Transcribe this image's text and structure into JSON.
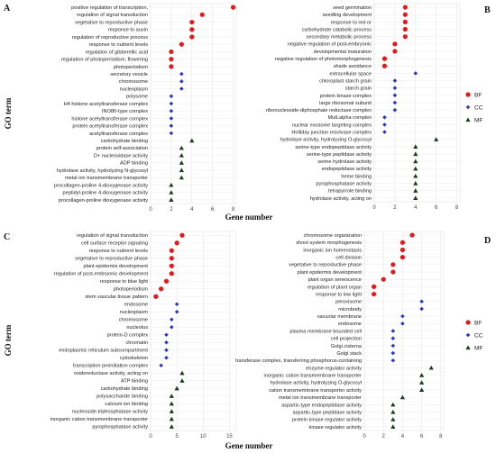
{
  "figure": {
    "ylabel": "GO term",
    "xlabel": "Gene number",
    "colors": {
      "BF": "#e31a1c",
      "CC": "#2b35c8",
      "MF": "#1a3d1a"
    },
    "legend": [
      "BF",
      "CC",
      "MF"
    ]
  },
  "chart_data": [
    {
      "type": "scatter",
      "panel": "A",
      "xlim": [
        0,
        8.3
      ],
      "xticks": [
        0,
        2,
        4,
        6,
        8
      ],
      "legend_position": "none",
      "terms": [
        {
          "label": "positive regulation of transcription,",
          "value": 8,
          "cat": "BF"
        },
        {
          "label": "regulation of signal transduction",
          "value": 5,
          "cat": "BF"
        },
        {
          "label": "vegetative to reproductive phase",
          "value": 4,
          "cat": "BF"
        },
        {
          "label": "response to auxin",
          "value": 4,
          "cat": "BF"
        },
        {
          "label": "regulation of reproductive process",
          "value": 4,
          "cat": "BF"
        },
        {
          "label": "response to nutrient levels",
          "value": 3,
          "cat": "BF"
        },
        {
          "label": "regulation of gibberellic acid",
          "value": 2,
          "cat": "BF"
        },
        {
          "label": "regulation of photoperiodism, flowering",
          "value": 2,
          "cat": "BF"
        },
        {
          "label": "photoperiodism",
          "value": 2,
          "cat": "BF"
        },
        {
          "label": "secretory vesicle",
          "value": 3,
          "cat": "CC"
        },
        {
          "label": "chromosome",
          "value": 3,
          "cat": "CC"
        },
        {
          "label": "nucleoplasm",
          "value": 3,
          "cat": "CC"
        },
        {
          "label": "polysome",
          "value": 2,
          "cat": "CC"
        },
        {
          "label": "H4 histone acetyltransferase complex",
          "value": 2,
          "cat": "CC"
        },
        {
          "label": "INO80-type complex",
          "value": 2,
          "cat": "CC"
        },
        {
          "label": "histone acetyltransferase complex",
          "value": 2,
          "cat": "CC"
        },
        {
          "label": "protein acetyltransferase complex",
          "value": 2,
          "cat": "CC"
        },
        {
          "label": "acetyltransferase complex",
          "value": 2,
          "cat": "CC"
        },
        {
          "label": "carbohydrate binding",
          "value": 4,
          "cat": "MF"
        },
        {
          "label": "protein self-association",
          "value": 3,
          "cat": "MF"
        },
        {
          "label": "D+ nucleosidase activity",
          "value": 3,
          "cat": "MF"
        },
        {
          "label": "ADP binding",
          "value": 3,
          "cat": "MF"
        },
        {
          "label": "hydrolase activity, hydrolyzing N-glycosyl",
          "value": 3,
          "cat": "MF"
        },
        {
          "label": "metal ion transmembrane transporter",
          "value": 3,
          "cat": "MF"
        },
        {
          "label": "procollagen-proline 4-dioxygenase activity",
          "value": 2,
          "cat": "MF"
        },
        {
          "label": "peptidyl-proline 4-dioxygenase activity",
          "value": 2,
          "cat": "MF"
        },
        {
          "label": "procollagen-proline dioxygenase activity",
          "value": 2,
          "cat": "MF"
        }
      ]
    },
    {
      "type": "scatter",
      "panel": "B",
      "xlim": [
        0,
        8.3
      ],
      "xticks": [
        0,
        2,
        4,
        6,
        8
      ],
      "legend_position": "right",
      "terms": [
        {
          "label": "seed germination",
          "value": 3,
          "cat": "BF"
        },
        {
          "label": "seedling development",
          "value": 3,
          "cat": "BF"
        },
        {
          "label": "response to red or",
          "value": 3,
          "cat": "BF"
        },
        {
          "label": "carbohydrate catabolic process",
          "value": 3,
          "cat": "BF"
        },
        {
          "label": "secondary metabolic process",
          "value": 3,
          "cat": "BF"
        },
        {
          "label": "negative regulation of post-embryonic",
          "value": 2,
          "cat": "BF"
        },
        {
          "label": "developmental maturation",
          "value": 2,
          "cat": "BF"
        },
        {
          "label": "negative regulation of photomorphogenesis",
          "value": 1,
          "cat": "BF"
        },
        {
          "label": "shade avoidance",
          "value": 1,
          "cat": "BF"
        },
        {
          "label": "extracellular space",
          "value": 4,
          "cat": "CC"
        },
        {
          "label": "chloroplast starch grain",
          "value": 2,
          "cat": "CC"
        },
        {
          "label": "starch grain",
          "value": 2,
          "cat": "CC"
        },
        {
          "label": "protein kinase complex",
          "value": 2,
          "cat": "CC"
        },
        {
          "label": "large ribosomal subunit",
          "value": 2,
          "cat": "CC"
        },
        {
          "label": "ribonucleoside-diphosphate reductase complex",
          "value": 2,
          "cat": "CC"
        },
        {
          "label": "MutLalpha complex",
          "value": 1,
          "cat": "CC"
        },
        {
          "label": "nuclear exosome targeting complex",
          "value": 1,
          "cat": "CC"
        },
        {
          "label": "Holliday junction resolvase complex",
          "value": 1,
          "cat": "CC"
        },
        {
          "label": "hydrolase activity, hydrolyzing O-glycosyl",
          "value": 6,
          "cat": "MF"
        },
        {
          "label": "serine-type endopeptidase activity",
          "value": 4,
          "cat": "MF"
        },
        {
          "label": "serine-type peptidase activity",
          "value": 4,
          "cat": "MF"
        },
        {
          "label": "serine hydrolase activity",
          "value": 4,
          "cat": "MF"
        },
        {
          "label": "endopeptidase activity",
          "value": 4,
          "cat": "MF"
        },
        {
          "label": "heme binding",
          "value": 4,
          "cat": "MF"
        },
        {
          "label": "pyrophosphatase activity",
          "value": 4,
          "cat": "MF"
        },
        {
          "label": "tetrapyrrole binding",
          "value": 4,
          "cat": "MF"
        },
        {
          "label": "hydrolase activity, acting on",
          "value": 4,
          "cat": "MF"
        }
      ]
    },
    {
      "type": "scatter",
      "panel": "C",
      "xlim": [
        0,
        16.3
      ],
      "xticks": [
        0,
        5,
        10,
        15
      ],
      "legend_position": "none",
      "terms": [
        {
          "label": "regulation of signal transduction",
          "value": 6,
          "cat": "BF"
        },
        {
          "label": "cell surface receptor signaling",
          "value": 5,
          "cat": "BF"
        },
        {
          "label": "response to nutrient levels",
          "value": 4,
          "cat": "BF"
        },
        {
          "label": "vegetative to reproductive phase",
          "value": 4,
          "cat": "BF"
        },
        {
          "label": "plant epidermis development",
          "value": 4,
          "cat": "BF"
        },
        {
          "label": "regulation of post-embryonic development",
          "value": 4,
          "cat": "BF"
        },
        {
          "label": "response to blue light",
          "value": 3,
          "cat": "BF"
        },
        {
          "label": "photoperiodism",
          "value": 2,
          "cat": "BF"
        },
        {
          "label": "stem vascular tissue pattern",
          "value": 1,
          "cat": "BF"
        },
        {
          "label": "endosome",
          "value": 5,
          "cat": "CC"
        },
        {
          "label": "nucleoplasm",
          "value": 5,
          "cat": "CC"
        },
        {
          "label": "chromosome",
          "value": 4,
          "cat": "CC"
        },
        {
          "label": "nucleolus",
          "value": 4,
          "cat": "CC"
        },
        {
          "label": "protein-D complex",
          "value": 3,
          "cat": "CC"
        },
        {
          "label": "chromatin",
          "value": 3,
          "cat": "CC"
        },
        {
          "label": "endoplasmic reticulum subcompartment",
          "value": 3,
          "cat": "CC"
        },
        {
          "label": "cytoskeleton",
          "value": 3,
          "cat": "CC"
        },
        {
          "label": "transcription preinitiation complex",
          "value": 2,
          "cat": "CC"
        },
        {
          "label": "oxidoreductase activity, acting on",
          "value": 6,
          "cat": "MF"
        },
        {
          "label": "ATP binding",
          "value": 6,
          "cat": "MF"
        },
        {
          "label": "carbohydrate binding",
          "value": 5,
          "cat": "MF"
        },
        {
          "label": "polysaccharide binding",
          "value": 4,
          "cat": "MF"
        },
        {
          "label": "calcium ion binding",
          "value": 4,
          "cat": "MF"
        },
        {
          "label": "nucleoside-triphosphatase activity",
          "value": 4,
          "cat": "MF"
        },
        {
          "label": "inorganic cation transmembrane transporter",
          "value": 4,
          "cat": "MF"
        },
        {
          "label": "pyrophosphatase activity",
          "value": 4,
          "cat": "MF"
        }
      ]
    },
    {
      "type": "scatter",
      "panel": "D",
      "xlim": [
        0,
        8.3
      ],
      "xticks": [
        0,
        2,
        4,
        6,
        8
      ],
      "legend_position": "right",
      "terms": [
        {
          "label": "chromosome organization",
          "value": 5,
          "cat": "BF"
        },
        {
          "label": "shoot system morphogenesis",
          "value": 4,
          "cat": "BF"
        },
        {
          "label": "inorganic ion homeostasis",
          "value": 4,
          "cat": "BF"
        },
        {
          "label": "cell division",
          "value": 4,
          "cat": "BF"
        },
        {
          "label": "vegetative to reproductive phase",
          "value": 3,
          "cat": "BF"
        },
        {
          "label": "plant epidermis development",
          "value": 3,
          "cat": "BF"
        },
        {
          "label": "plant organ senescence",
          "value": 2,
          "cat": "BF"
        },
        {
          "label": "regulation of plant organ",
          "value": 1,
          "cat": "BF"
        },
        {
          "label": "response to low light",
          "value": 1,
          "cat": "BF"
        },
        {
          "label": "peroxisome",
          "value": 6,
          "cat": "CC"
        },
        {
          "label": "microbody",
          "value": 6,
          "cat": "CC"
        },
        {
          "label": "vacuolar membrane",
          "value": 4,
          "cat": "CC"
        },
        {
          "label": "endosome",
          "value": 4,
          "cat": "CC"
        },
        {
          "label": "plasma membrane bounded cell",
          "value": 3,
          "cat": "CC"
        },
        {
          "label": "cell projection",
          "value": 3,
          "cat": "CC"
        },
        {
          "label": "Golgi cisterna",
          "value": 3,
          "cat": "CC"
        },
        {
          "label": "Golgi stack",
          "value": 3,
          "cat": "CC"
        },
        {
          "label": "transferase complex, transferring phosphorus-containing",
          "value": 3,
          "cat": "CC"
        },
        {
          "label": "enzyme regulator activity",
          "value": 7,
          "cat": "MF"
        },
        {
          "label": "inorganic cation transmembrane transporter",
          "value": 6,
          "cat": "MF"
        },
        {
          "label": "hydrolase activity, hydrolyzing O-glycosyl",
          "value": 6,
          "cat": "MF"
        },
        {
          "label": "cation transmembrane transporter activity",
          "value": 6,
          "cat": "MF"
        },
        {
          "label": "metal ion transmembrane transporter",
          "value": 4,
          "cat": "MF"
        },
        {
          "label": "aspartic-type endopeptidase activity",
          "value": 3,
          "cat": "MF"
        },
        {
          "label": "aspartic-type peptidase activity",
          "value": 3,
          "cat": "MF"
        },
        {
          "label": "protein kinase regulator activity",
          "value": 3,
          "cat": "MF"
        },
        {
          "label": "kinase regulator activity",
          "value": 3,
          "cat": "MF"
        }
      ]
    }
  ]
}
